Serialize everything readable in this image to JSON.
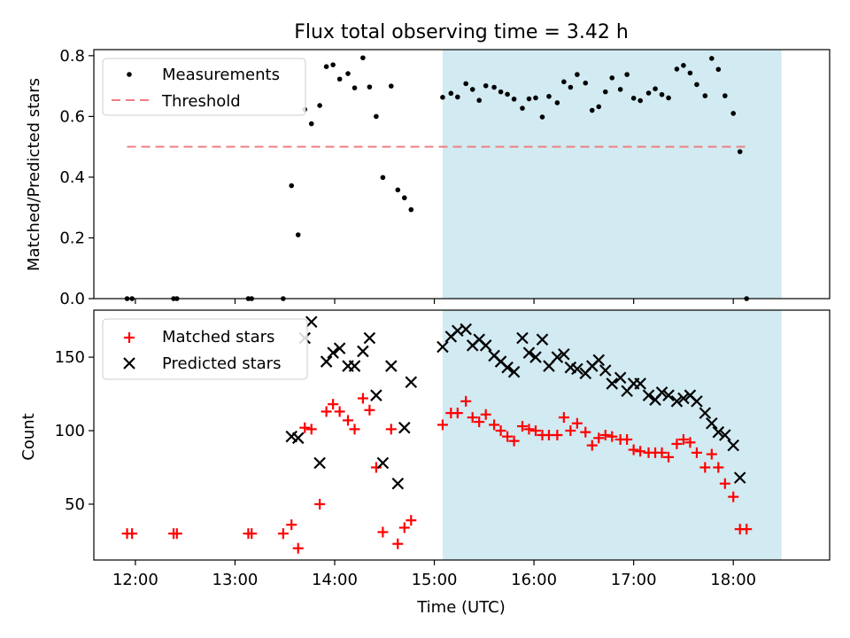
{
  "chart_data": [
    {
      "type": "scatter",
      "title": "Flux total observing time = 3.42 h",
      "xlabel": "",
      "ylabel": "Matched/Predicted stars",
      "xlim": [
        "11:35",
        "18:58"
      ],
      "ylim": [
        0,
        0.82
      ],
      "yticks": [
        "0.0",
        "0.2",
        "0.4",
        "0.6",
        "0.8"
      ],
      "highlight_span": {
        "from": "15:05",
        "to": "18:29",
        "color": "#add8e6"
      },
      "legend_position": "top-left",
      "series": [
        {
          "name": "Measurements",
          "marker": "dot",
          "color": "#000000",
          "points": [
            [
              "11:55",
              0.0
            ],
            [
              "11:58",
              0.0
            ],
            [
              "12:23",
              0.0
            ],
            [
              "12:25",
              0.0
            ],
            [
              "13:08",
              0.0
            ],
            [
              "13:10",
              0.0
            ],
            [
              "13:29",
              0.0
            ],
            [
              "13:34",
              0.372
            ],
            [
              "13:38",
              0.21
            ],
            [
              "13:42",
              0.623
            ],
            [
              "13:46",
              0.576
            ],
            [
              "13:51",
              0.636
            ],
            [
              "13:55",
              0.764
            ],
            [
              "13:59",
              0.77
            ],
            [
              "14:03",
              0.723
            ],
            [
              "14:08",
              0.741
            ],
            [
              "14:12",
              0.694
            ],
            [
              "14:17",
              0.793
            ],
            [
              "14:21",
              0.697
            ],
            [
              "14:25",
              0.6
            ],
            [
              "14:29",
              0.399
            ],
            [
              "14:34",
              0.7
            ],
            [
              "14:38",
              0.358
            ],
            [
              "14:42",
              0.332
            ],
            [
              "14:46",
              0.293
            ],
            [
              "15:05",
              0.663
            ],
            [
              "15:10",
              0.676
            ],
            [
              "15:14",
              0.664
            ],
            [
              "15:19",
              0.708
            ],
            [
              "15:23",
              0.689
            ],
            [
              "15:27",
              0.653
            ],
            [
              "15:31",
              0.701
            ],
            [
              "15:36",
              0.696
            ],
            [
              "15:40",
              0.681
            ],
            [
              "15:44",
              0.673
            ],
            [
              "15:48",
              0.657
            ],
            [
              "15:53",
              0.627
            ],
            [
              "15:57",
              0.658
            ],
            [
              "16:01",
              0.661
            ],
            [
              "16:05",
              0.598
            ],
            [
              "16:09",
              0.666
            ],
            [
              "16:14",
              0.645
            ],
            [
              "16:18",
              0.714
            ],
            [
              "16:22",
              0.696
            ],
            [
              "16:26",
              0.738
            ],
            [
              "16:31",
              0.71
            ],
            [
              "16:35",
              0.62
            ],
            [
              "16:39",
              0.632
            ],
            [
              "16:43",
              0.681
            ],
            [
              "16:47",
              0.727
            ],
            [
              "16:52",
              0.689
            ],
            [
              "16:56",
              0.738
            ],
            [
              "17:00",
              0.66
            ],
            [
              "17:04",
              0.652
            ],
            [
              "17:09",
              0.677
            ],
            [
              "17:13",
              0.691
            ],
            [
              "17:17",
              0.672
            ],
            [
              "17:21",
              0.661
            ],
            [
              "17:26",
              0.756
            ],
            [
              "17:30",
              0.768
            ],
            [
              "17:34",
              0.743
            ],
            [
              "17:38",
              0.705
            ],
            [
              "17:43",
              0.668
            ],
            [
              "17:47",
              0.791
            ],
            [
              "17:51",
              0.755
            ],
            [
              "17:55",
              0.668
            ],
            [
              "18:00",
              0.61
            ],
            [
              "18:04",
              0.484
            ],
            [
              "18:08",
              0.0
            ]
          ]
        },
        {
          "name": "Threshold",
          "marker": "dashed-line",
          "color": "#f08080",
          "points": [
            [
              "11:55",
              0.5
            ],
            [
              "18:10",
              0.5
            ]
          ]
        }
      ]
    },
    {
      "type": "scatter",
      "title": "",
      "xlabel": "Time (UTC)",
      "ylabel": "Count",
      "xlim": [
        "11:35",
        "18:58"
      ],
      "ylim": [
        12,
        182
      ],
      "yticks": [
        "50",
        "100",
        "150"
      ],
      "xticks": [
        "12:00",
        "13:00",
        "14:00",
        "15:00",
        "16:00",
        "17:00",
        "18:00"
      ],
      "highlight_span": {
        "from": "15:05",
        "to": "18:29",
        "color": "#add8e6"
      },
      "legend_position": "top-left",
      "series": [
        {
          "name": "Matched stars",
          "marker": "plus",
          "color": "#ff0000",
          "points": [
            [
              "11:55",
              30
            ],
            [
              "11:58",
              30
            ],
            [
              "12:23",
              30
            ],
            [
              "12:25",
              30
            ],
            [
              "13:08",
              30
            ],
            [
              "13:10",
              30
            ],
            [
              "13:29",
              30
            ],
            [
              "13:34",
              36
            ],
            [
              "13:38",
              20
            ],
            [
              "13:42",
              102
            ],
            [
              "13:46",
              101
            ],
            [
              "13:51",
              50
            ],
            [
              "13:55",
              113
            ],
            [
              "13:59",
              118
            ],
            [
              "14:03",
              113
            ],
            [
              "14:08",
              107
            ],
            [
              "14:12",
              101
            ],
            [
              "14:17",
              122
            ],
            [
              "14:21",
              114
            ],
            [
              "14:25",
              75
            ],
            [
              "14:29",
              31
            ],
            [
              "14:34",
              101
            ],
            [
              "14:38",
              23
            ],
            [
              "14:42",
              34
            ],
            [
              "14:46",
              39
            ],
            [
              "15:05",
              104
            ],
            [
              "15:10",
              112
            ],
            [
              "15:14",
              112
            ],
            [
              "15:19",
              120
            ],
            [
              "15:23",
              109
            ],
            [
              "15:27",
              106
            ],
            [
              "15:31",
              111
            ],
            [
              "15:36",
              104
            ],
            [
              "15:40",
              100
            ],
            [
              "15:44",
              96
            ],
            [
              "15:48",
              93
            ],
            [
              "15:53",
              103
            ],
            [
              "15:57",
              101
            ],
            [
              "16:01",
              100
            ],
            [
              "16:05",
              97
            ],
            [
              "16:09",
              97
            ],
            [
              "16:14",
              97
            ],
            [
              "16:18",
              109
            ],
            [
              "16:22",
              100
            ],
            [
              "16:26",
              105
            ],
            [
              "16:31",
              99
            ],
            [
              "16:35",
              90
            ],
            [
              "16:39",
              95
            ],
            [
              "16:43",
              97
            ],
            [
              "16:47",
              96
            ],
            [
              "16:52",
              94
            ],
            [
              "16:56",
              94
            ],
            [
              "17:00",
              87
            ],
            [
              "17:04",
              86
            ],
            [
              "17:09",
              85
            ],
            [
              "17:13",
              85
            ],
            [
              "17:17",
              85
            ],
            [
              "17:21",
              82
            ],
            [
              "17:26",
              91
            ],
            [
              "17:30",
              94
            ],
            [
              "17:34",
              92
            ],
            [
              "17:38",
              85
            ],
            [
              "17:43",
              75
            ],
            [
              "17:47",
              84
            ],
            [
              "17:51",
              75
            ],
            [
              "17:55",
              64
            ],
            [
              "18:00",
              55
            ],
            [
              "18:04",
              33
            ],
            [
              "18:08",
              33
            ]
          ]
        },
        {
          "name": "Predicted stars",
          "marker": "cross",
          "color": "#000000",
          "points": [
            [
              "13:34",
              96
            ],
            [
              "13:38",
              95
            ],
            [
              "13:42",
              163
            ],
            [
              "13:46",
              174
            ],
            [
              "13:51",
              78
            ],
            [
              "13:55",
              147
            ],
            [
              "13:59",
              153
            ],
            [
              "14:03",
              156
            ],
            [
              "14:08",
              144
            ],
            [
              "14:12",
              144
            ],
            [
              "14:17",
              154
            ],
            [
              "14:21",
              163
            ],
            [
              "14:25",
              124
            ],
            [
              "14:29",
              78
            ],
            [
              "14:34",
              144
            ],
            [
              "14:38",
              64
            ],
            [
              "14:42",
              102
            ],
            [
              "14:46",
              133
            ],
            [
              "15:05",
              157
            ],
            [
              "15:10",
              164
            ],
            [
              "15:14",
              168
            ],
            [
              "15:19",
              169
            ],
            [
              "15:23",
              158
            ],
            [
              "15:27",
              162
            ],
            [
              "15:31",
              158
            ],
            [
              "15:36",
              151
            ],
            [
              "15:40",
              147
            ],
            [
              "15:44",
              143
            ],
            [
              "15:48",
              140
            ],
            [
              "15:53",
              163
            ],
            [
              "15:57",
              153
            ],
            [
              "16:01",
              150
            ],
            [
              "16:05",
              162
            ],
            [
              "16:09",
              144
            ],
            [
              "16:14",
              150
            ],
            [
              "16:18",
              152
            ],
            [
              "16:22",
              143
            ],
            [
              "16:26",
              142
            ],
            [
              "16:31",
              139
            ],
            [
              "16:35",
              144
            ],
            [
              "16:39",
              148
            ],
            [
              "16:43",
              141
            ],
            [
              "16:47",
              132
            ],
            [
              "16:52",
              136
            ],
            [
              "16:56",
              127
            ],
            [
              "17:00",
              132
            ],
            [
              "17:04",
              132
            ],
            [
              "17:09",
              124
            ],
            [
              "17:13",
              121
            ],
            [
              "17:17",
              126
            ],
            [
              "17:21",
              124
            ],
            [
              "17:26",
              120
            ],
            [
              "17:30",
              122
            ],
            [
              "17:34",
              124
            ],
            [
              "17:38",
              120
            ],
            [
              "17:43",
              112
            ],
            [
              "17:47",
              105
            ],
            [
              "17:51",
              99
            ],
            [
              "17:55",
              97
            ],
            [
              "18:00",
              90
            ],
            [
              "18:04",
              68
            ]
          ]
        }
      ]
    }
  ]
}
